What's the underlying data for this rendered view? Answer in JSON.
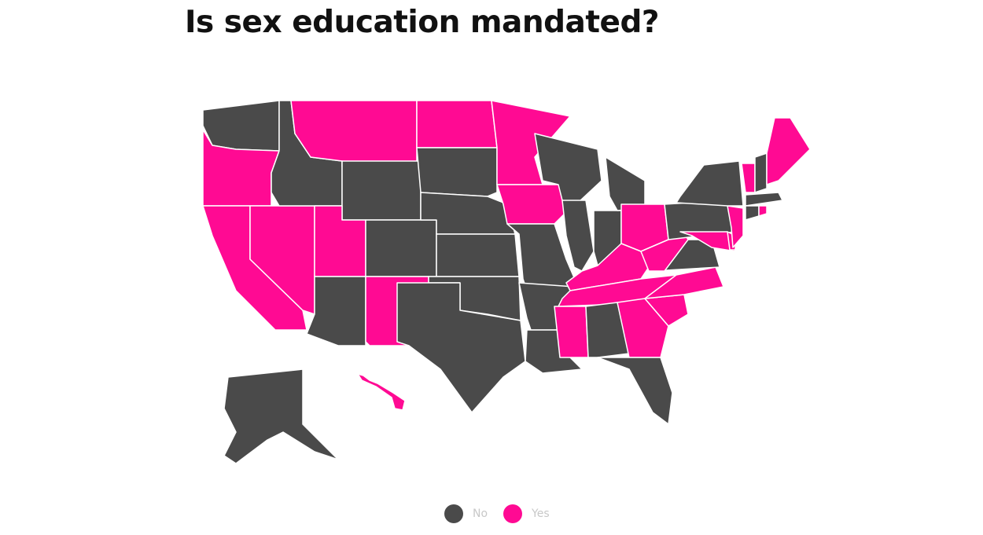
{
  "title": "Is sex education mandated?",
  "colors": {
    "No": "#4a4a4a",
    "Yes": "#ff0a93"
  },
  "legend": [
    {
      "label": "No",
      "color": "#4a4a4a"
    },
    {
      "label": "Yes",
      "color": "#ff0a93"
    }
  ],
  "states": {
    "WA": "No",
    "OR": "Yes",
    "CA": "Yes",
    "NV": "Yes",
    "ID": "No",
    "MT": "Yes",
    "WY": "No",
    "UT": "Yes",
    "AZ": "No",
    "CO": "No",
    "NM": "Yes",
    "ND": "Yes",
    "SD": "No",
    "NE": "No",
    "KS": "No",
    "OK": "No",
    "TX": "No",
    "MN": "Yes",
    "IA": "Yes",
    "MO": "No",
    "AR": "No",
    "LA": "No",
    "WI": "No",
    "IL": "No",
    "IN": "No",
    "MI": "No",
    "OH": "Yes",
    "KY": "Yes",
    "TN": "Yes",
    "MS": "Yes",
    "AL": "No",
    "GA": "Yes",
    "FL": "No",
    "SC": "Yes",
    "NC": "Yes",
    "VA": "No",
    "WV": "Yes",
    "PA": "No",
    "MD": "Yes",
    "DE": "Yes",
    "NJ": "Yes",
    "NY": "No",
    "VT": "Yes",
    "NH": "No",
    "ME": "Yes",
    "MA": "No",
    "CT": "No",
    "RI": "Yes",
    "AK": "No",
    "HI": "Yes"
  }
}
